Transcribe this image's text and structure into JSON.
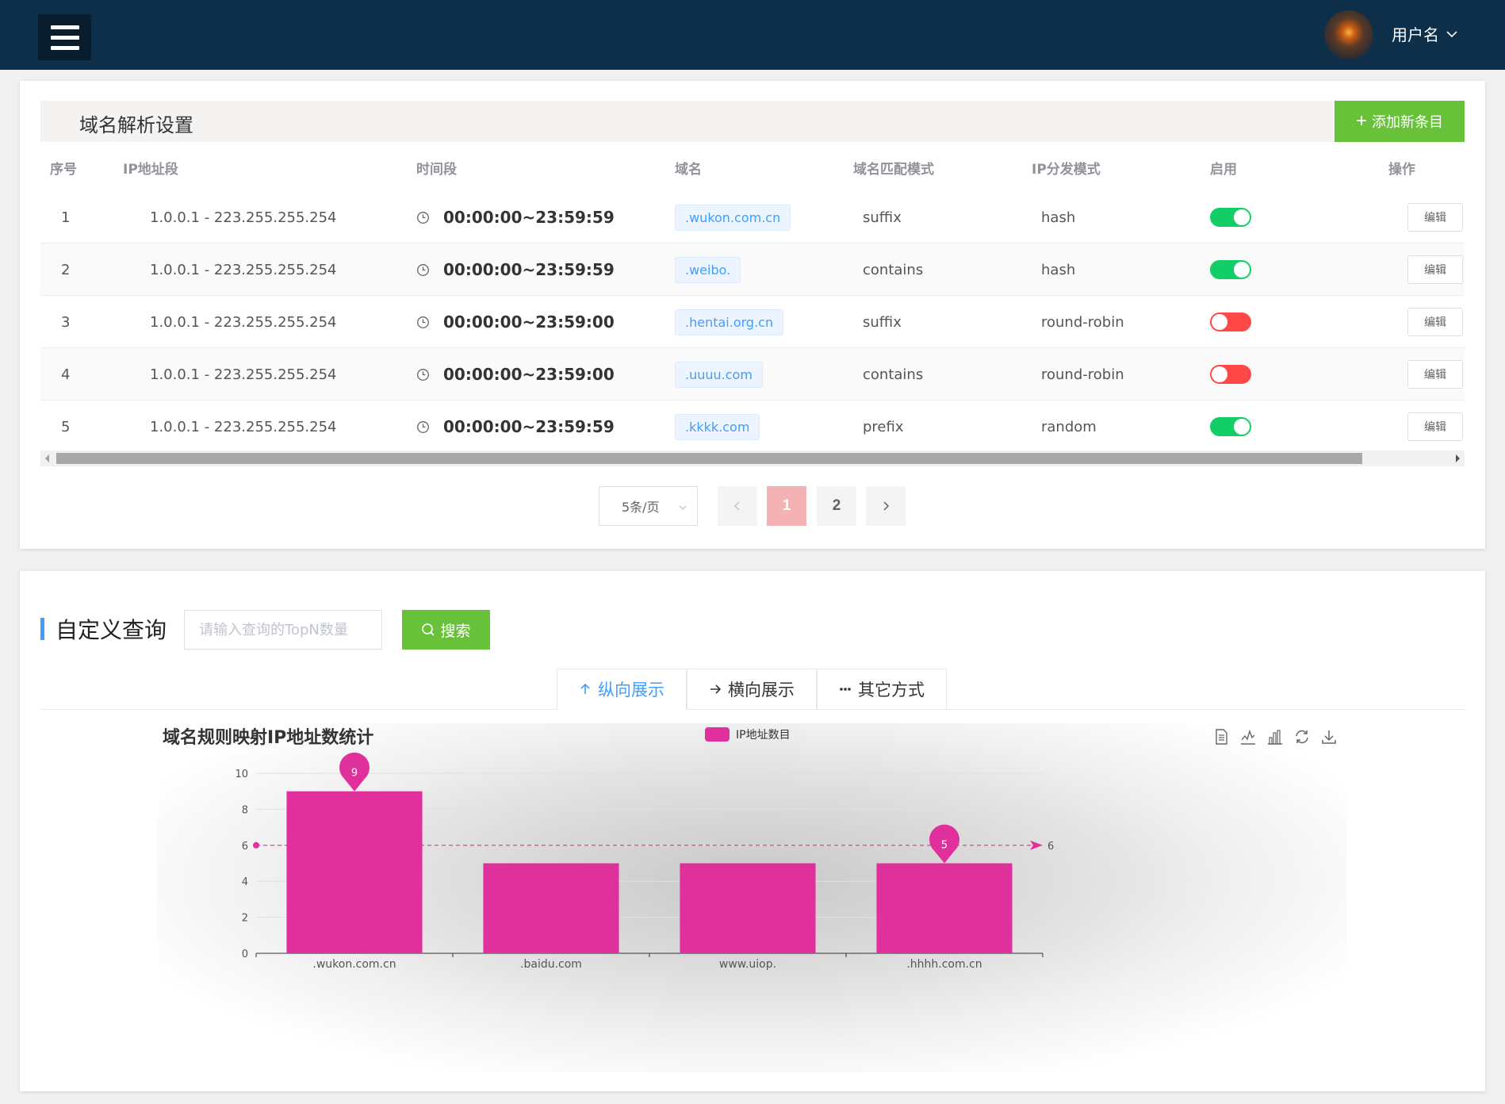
{
  "header": {
    "user_name": "用户名"
  },
  "dns_card": {
    "title": "域名解析设置",
    "add_button": "添加新条目",
    "columns": [
      "序号",
      "IP地址段",
      "时间段",
      "域名",
      "域名匹配模式",
      "IP分发模式",
      "启用",
      "操作"
    ],
    "rows": [
      {
        "index": "1",
        "ip_range": "1.0.0.1 - 223.255.255.254",
        "time": "00:00:00~23:59:59",
        "domain": ".wukon.com.cn",
        "match_mode": "suffix",
        "dist_mode": "hash",
        "enabled": true,
        "edit_label": "编辑"
      },
      {
        "index": "2",
        "ip_range": "1.0.0.1 - 223.255.255.254",
        "time": "00:00:00~23:59:59",
        "domain": ".weibo.",
        "match_mode": "contains",
        "dist_mode": "hash",
        "enabled": true,
        "edit_label": "编辑"
      },
      {
        "index": "3",
        "ip_range": "1.0.0.1 - 223.255.255.254",
        "time": "00:00:00~23:59:00",
        "domain": ".hentai.org.cn",
        "match_mode": "suffix",
        "dist_mode": "round-robin",
        "enabled": false,
        "edit_label": "编辑"
      },
      {
        "index": "4",
        "ip_range": "1.0.0.1 - 223.255.255.254",
        "time": "00:00:00~23:59:00",
        "domain": ".uuuu.com",
        "match_mode": "contains",
        "dist_mode": "round-robin",
        "enabled": false,
        "edit_label": "编辑"
      },
      {
        "index": "5",
        "ip_range": "1.0.0.1 - 223.255.255.254",
        "time": "00:00:00~23:59:59",
        "domain": ".kkkk.com",
        "match_mode": "prefix",
        "dist_mode": "random",
        "enabled": true,
        "edit_label": "编辑"
      }
    ],
    "pagination": {
      "page_size": "5条/页",
      "pages": [
        "1",
        "2"
      ],
      "current_page": "1"
    }
  },
  "query_card": {
    "title": "自定义查询",
    "input_placeholder": "请输入查询的TopN数量",
    "search_button": "搜索",
    "tabs": [
      {
        "label": "纵向展示",
        "icon": "arrow-up-icon",
        "active": true
      },
      {
        "label": "横向展示",
        "icon": "arrow-right-icon",
        "active": false
      },
      {
        "label": "其它方式",
        "icon": "more-icon",
        "active": false
      }
    ]
  },
  "chart_data": {
    "type": "bar",
    "title": "域名规则映射IP地址数统计",
    "categories": [
      ".wukon.com.cn",
      ".baidu.com",
      "www.uiop.",
      ".hhhh.com.cn"
    ],
    "series": [
      {
        "name": "IP地址数目",
        "values": [
          9,
          5,
          5,
          5
        ],
        "color": "#e0309c"
      }
    ],
    "ylim": [
      0,
      10
    ],
    "yticks": [
      0,
      2,
      4,
      6,
      8,
      10
    ],
    "mark_points": [
      {
        "category": ".wukon.com.cn",
        "value": 9,
        "label": "9"
      },
      {
        "category": ".hhhh.com.cn",
        "value": 5,
        "label": "5"
      }
    ],
    "mark_line": {
      "value": 6,
      "label": "6"
    },
    "toolbox": [
      "data-view-icon",
      "line-chart-icon",
      "bar-chart-icon",
      "restore-icon",
      "save-image-icon"
    ]
  }
}
